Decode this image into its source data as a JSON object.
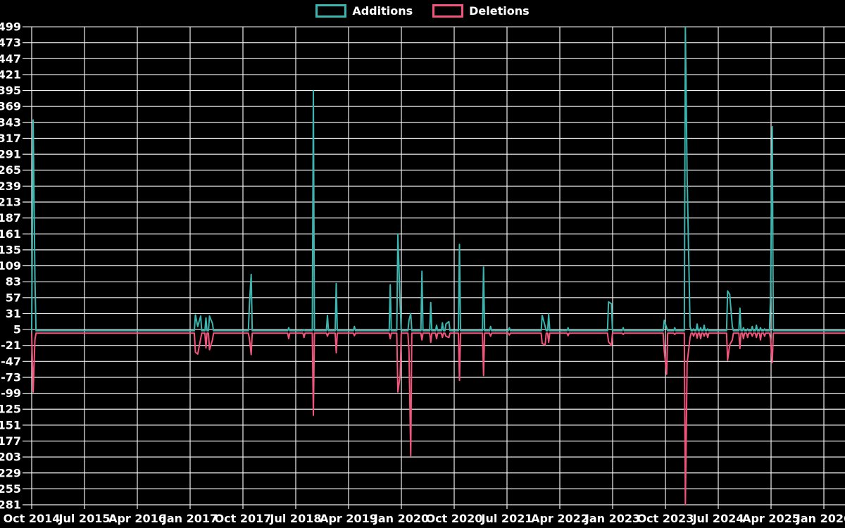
{
  "legend": {
    "items": [
      {
        "label": "Additions",
        "color": "#3bb5af"
      },
      {
        "label": "Deletions",
        "color": "#f2557c"
      }
    ]
  },
  "chart_data": {
    "type": "line",
    "title": "",
    "xlabel": "",
    "ylabel": "",
    "background_color": "#000000",
    "grid": true,
    "grid_color": "#efefef",
    "text_color": "#ffffff",
    "legend_position": "top-center",
    "x_axis": {
      "tick_labels": [
        "Oct 2014",
        "Jul 2015",
        "Apr 2016",
        "Jan 2017",
        "Oct 2017",
        "Jul 2018",
        "Apr 2019",
        "Jan 2020",
        "Oct 2020",
        "Jul 2021",
        "Apr 2022",
        "Jan 2023",
        "Oct 2023",
        "Jul 2024",
        "Apr 2025",
        "Jan 2026"
      ],
      "months_per_tick": 9,
      "end_month_offset": 138.6
    },
    "y_axis": {
      "min": -281,
      "max": 499,
      "step": 26,
      "tick_labels": [
        499,
        473,
        447,
        421,
        395,
        369,
        343,
        317,
        291,
        265,
        239,
        213,
        187,
        161,
        135,
        109,
        83,
        57,
        31,
        5,
        -21,
        -47,
        -73,
        -99,
        -125,
        -151,
        -177,
        -203,
        -229,
        -255,
        -281
      ]
    },
    "series": [
      {
        "name": "Additions",
        "color": "#3bb5af",
        "baseline": 3
      },
      {
        "name": "Deletions",
        "color": "#f2557c",
        "baseline": -1
      }
    ],
    "points_format": [
      "month_offset_from_Oct_2014",
      "additions",
      "deletions"
    ],
    "points": [
      [
        0.25,
        347,
        -97
      ],
      [
        0.55,
        90,
        -12
      ],
      [
        27.9,
        29,
        -32
      ],
      [
        28.3,
        10,
        -35
      ],
      [
        28.8,
        27,
        -10
      ],
      [
        29.7,
        24,
        -25
      ],
      [
        30.3,
        27,
        -28
      ],
      [
        30.8,
        15,
        -12
      ],
      [
        37.1,
        45,
        -10
      ],
      [
        37.4,
        95,
        -36
      ],
      [
        43.8,
        8,
        -10
      ],
      [
        46.4,
        5,
        -8
      ],
      [
        48.0,
        395,
        -135
      ],
      [
        50.4,
        28,
        -6
      ],
      [
        51.9,
        80,
        -33
      ],
      [
        55.0,
        10,
        -5
      ],
      [
        61.1,
        78,
        -10
      ],
      [
        62.4,
        161,
        -97
      ],
      [
        62.8,
        45,
        -70
      ],
      [
        64.3,
        20,
        -30
      ],
      [
        64.6,
        31,
        -201
      ],
      [
        66.5,
        100,
        -12
      ],
      [
        68.0,
        49,
        -16
      ],
      [
        69.0,
        12,
        -10
      ],
      [
        70.0,
        16,
        -8
      ],
      [
        70.6,
        14,
        -6
      ],
      [
        71.1,
        18,
        -8
      ],
      [
        72.9,
        144,
        -78
      ],
      [
        77.0,
        107,
        -70
      ],
      [
        78.2,
        10,
        -6
      ],
      [
        81.4,
        8,
        -4
      ],
      [
        87.0,
        28,
        -18
      ],
      [
        87.5,
        10,
        -20
      ],
      [
        88.1,
        30,
        -16
      ],
      [
        91.4,
        8,
        -5
      ],
      [
        98.3,
        50,
        -15
      ],
      [
        98.8,
        47,
        -21
      ],
      [
        100.8,
        8,
        -3
      ],
      [
        107.8,
        20,
        -30
      ],
      [
        108.2,
        8,
        -68
      ],
      [
        109.6,
        8,
        -3
      ],
      [
        111.4,
        499,
        -281
      ],
      [
        111.7,
        255,
        -50
      ],
      [
        112.2,
        10,
        -8
      ],
      [
        112.8,
        6,
        -6
      ],
      [
        113.4,
        14,
        -9
      ],
      [
        114.0,
        8,
        -10
      ],
      [
        114.6,
        12,
        -6
      ],
      [
        115.2,
        6,
        -8
      ],
      [
        118.6,
        68,
        -45
      ],
      [
        118.95,
        62,
        -20
      ],
      [
        119.4,
        10,
        -12
      ],
      [
        120.7,
        40,
        -26
      ],
      [
        121.3,
        8,
        -10
      ],
      [
        122.0,
        6,
        -8
      ],
      [
        122.8,
        10,
        -6
      ],
      [
        123.5,
        12,
        -8
      ],
      [
        124.2,
        8,
        -12
      ],
      [
        124.9,
        6,
        -6
      ],
      [
        125.9,
        55,
        -10
      ],
      [
        126.2,
        336,
        -49
      ]
    ]
  }
}
